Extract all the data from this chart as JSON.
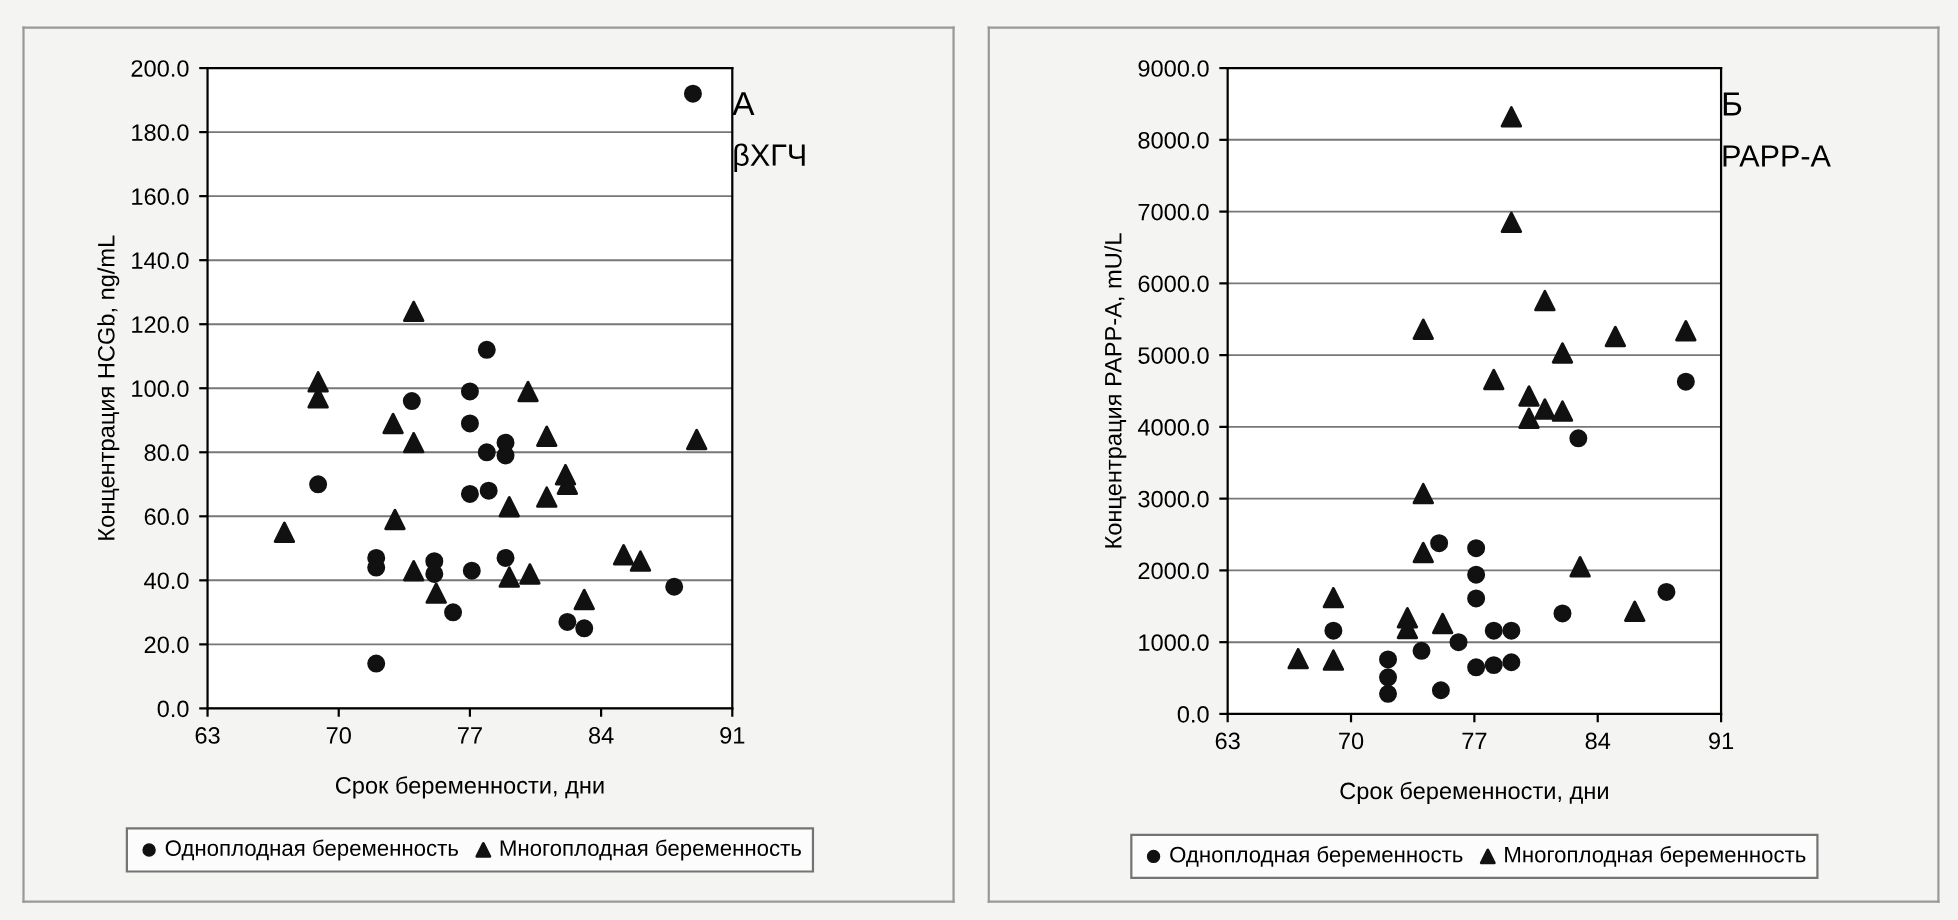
{
  "chart_data": [
    {
      "type": "scatter",
      "title": "А",
      "subtitle": "βХГЧ",
      "xlabel": "Срок беременности, дни",
      "ylabel": "Концентрация HCGb, ng/mL",
      "xlim": [
        63,
        91
      ],
      "xticks": [
        63,
        70,
        77,
        84,
        91
      ],
      "ylim": [
        0,
        200
      ],
      "yticks": [
        {
          "value": 0,
          "label": "0.0"
        },
        {
          "value": 20,
          "label": "20.0"
        },
        {
          "value": 40,
          "label": "40.0"
        },
        {
          "value": 60,
          "label": "60.0"
        },
        {
          "value": 80,
          "label": "80.0"
        },
        {
          "value": 100,
          "label": "100.0"
        },
        {
          "value": 120,
          "label": "120.0"
        },
        {
          "value": 140,
          "label": "140.0"
        },
        {
          "value": 160,
          "label": "160.0"
        },
        {
          "value": 180,
          "label": "180.0"
        },
        {
          "value": 200,
          "label": "200.0"
        }
      ],
      "grid": "y",
      "legend": "bottom",
      "series": [
        {
          "name": "Одноплодная беременность",
          "color": "#111111",
          "marker": "circle",
          "x": [
            68.9,
            72.0,
            72.0,
            72.0,
            73.9,
            75.1,
            75.1,
            76.1,
            77.0,
            77.0,
            77.0,
            77.1,
            77.9,
            77.9,
            78.0,
            78.9,
            78.9,
            78.9,
            82.2,
            83.1,
            87.9,
            88.9
          ],
          "values": [
            70,
            47,
            44,
            14,
            96,
            46,
            42,
            30,
            99,
            89,
            67,
            43,
            112,
            80,
            68,
            83,
            79,
            47,
            27,
            25,
            38,
            192
          ]
        },
        {
          "name": "Многоплодная беременность",
          "color": "#111111",
          "marker": "triangle",
          "x": [
            67.1,
            68.9,
            68.9,
            72.9,
            73.0,
            74.0,
            74.0,
            74.0,
            75.2,
            79.1,
            79.1,
            80.1,
            80.2,
            81.1,
            81.1,
            82.1,
            82.2,
            83.1,
            85.2,
            86.1,
            89.1
          ],
          "values": [
            55,
            102,
            97,
            89,
            59,
            124,
            83,
            43,
            36,
            63,
            41,
            99,
            42,
            85,
            66,
            73,
            70,
            34,
            48,
            46,
            84
          ]
        }
      ]
    },
    {
      "type": "scatter",
      "title": "Б",
      "subtitle": "PAPP-A",
      "xlabel": "Срок беременности, дни",
      "ylabel": "Концентрация PAPP-A, mU/L",
      "xlim": [
        63,
        91
      ],
      "xticks": [
        63,
        70,
        77,
        84,
        91
      ],
      "ylim": [
        0,
        9000
      ],
      "yticks": [
        {
          "value": 0,
          "label": "0.0"
        },
        {
          "value": 1000,
          "label": "1000.0"
        },
        {
          "value": 2000,
          "label": "2000.0"
        },
        {
          "value": 3000,
          "label": "3000.0"
        },
        {
          "value": 4000,
          "label": "4000.0"
        },
        {
          "value": 5000,
          "label": "5000.0"
        },
        {
          "value": 6000,
          "label": "6000.0"
        },
        {
          "value": 7000,
          "label": "7000.0"
        },
        {
          "value": 8000,
          "label": "8000.0"
        },
        {
          "value": 9000,
          "label": "9000.0"
        }
      ],
      "grid": "y",
      "legend": "bottom",
      "series": [
        {
          "name": "Одноплодная беременность",
          "color": "#111111",
          "marker": "circle",
          "x": [
            69.0,
            72.1,
            72.1,
            72.1,
            74.0,
            75.0,
            75.1,
            76.1,
            77.1,
            77.1,
            77.1,
            77.1,
            78.1,
            78.1,
            79.1,
            79.1,
            82.0,
            82.9,
            87.9,
            89.0
          ],
          "values": [
            1160,
            760,
            510,
            280,
            880,
            2380,
            330,
            1000,
            2310,
            1940,
            1610,
            650,
            1160,
            680,
            1160,
            720,
            1400,
            3840,
            1700,
            4630
          ]
        },
        {
          "name": "Многоплодная беременность",
          "color": "#111111",
          "marker": "triangle",
          "x": [
            67.0,
            69.0,
            69.0,
            73.2,
            73.2,
            74.1,
            74.1,
            74.1,
            75.2,
            78.1,
            79.1,
            79.1,
            80.1,
            80.1,
            81.0,
            81.0,
            82.0,
            82.0,
            83.0,
            85.0,
            86.1,
            89.0
          ],
          "values": [
            770,
            1620,
            750,
            1340,
            1190,
            5360,
            3070,
            2250,
            1260,
            4660,
            8320,
            6850,
            4430,
            4120,
            5760,
            4250,
            5030,
            4220,
            2050,
            5260,
            1430,
            5340
          ]
        }
      ]
    }
  ]
}
